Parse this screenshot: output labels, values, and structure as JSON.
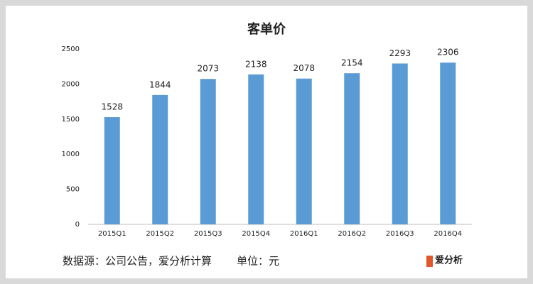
{
  "chart_data": {
    "type": "bar",
    "title": "客单价",
    "categories": [
      "2015Q1",
      "2015Q2",
      "2015Q3",
      "2015Q4",
      "2016Q1",
      "2016Q2",
      "2016Q3",
      "2016Q4"
    ],
    "values": [
      1528,
      1844,
      2073,
      2138,
      2078,
      2154,
      2293,
      2306
    ],
    "color": "#5b9bd5",
    "ylim": [
      0,
      2500
    ],
    "yticks": [
      0,
      500,
      1000,
      1500,
      2000,
      2500
    ],
    "grid": false,
    "source": "数据源：公司公告，爱分析计算",
    "unit": "单位：元",
    "logo": "爱分析"
  }
}
